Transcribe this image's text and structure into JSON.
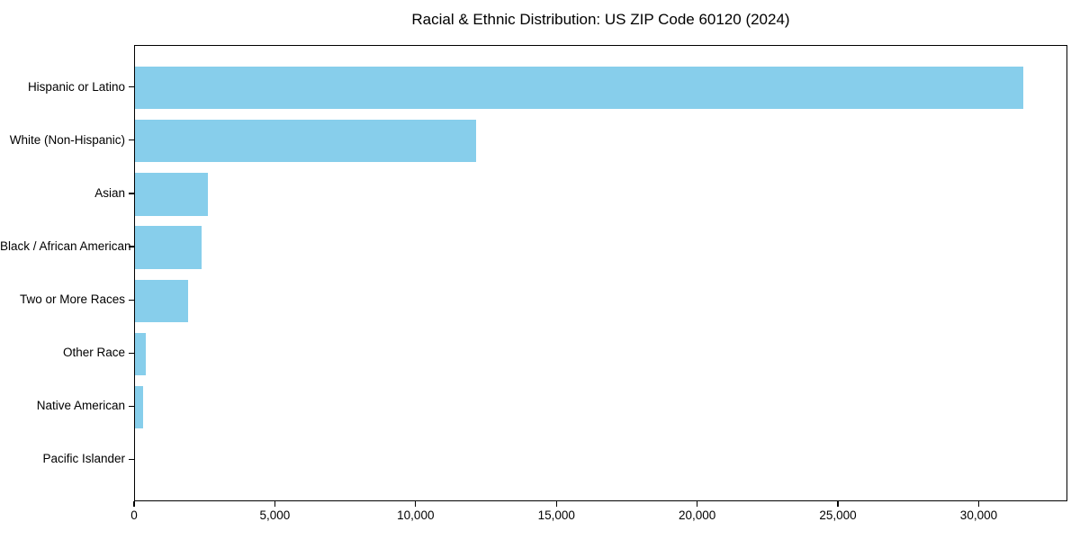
{
  "chart_data": {
    "type": "bar",
    "orientation": "horizontal",
    "title": "Racial & Ethnic Distribution: US ZIP Code 60120 (2024)",
    "categories": [
      "Hispanic or Latino",
      "White (Non-Hispanic)",
      "Asian",
      "Black / African American",
      "Two or More Races",
      "Other Race",
      "Native American",
      "Pacific Islander"
    ],
    "values": [
      31560,
      12100,
      2590,
      2350,
      1880,
      390,
      295,
      0
    ],
    "xlabel": "",
    "ylabel": "",
    "xlim": [
      0,
      33150
    ],
    "x_ticks": [
      0,
      5000,
      10000,
      15000,
      20000,
      25000,
      30000
    ],
    "x_tick_labels": [
      "0",
      "5,000",
      "10,000",
      "15,000",
      "20,000",
      "25,000",
      "30,000"
    ],
    "bar_color": "#87CEEB",
    "text_color": "#000000",
    "grid": false,
    "legend": false
  }
}
